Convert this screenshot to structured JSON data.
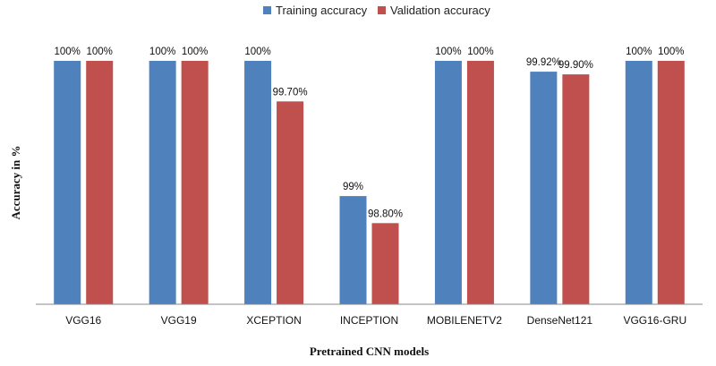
{
  "chart_data": {
    "type": "bar",
    "categories": [
      "VGG16",
      "VGG19",
      "XCEPTION",
      "INCEPTION",
      "MOBILENETV2",
      "DenseNet121",
      "VGG16-GRU"
    ],
    "series": [
      {
        "name": "Training accuracy",
        "values": [
          100,
          100,
          100,
          99,
          100,
          99.92,
          100
        ],
        "labels": [
          "100%",
          "100%",
          "100%",
          "99%",
          "100%",
          "99.92%",
          "100%"
        ],
        "color": "#4f81bd"
      },
      {
        "name": "Validation accuracy",
        "values": [
          100,
          100,
          99.7,
          98.8,
          100,
          99.9,
          100
        ],
        "labels": [
          "100%",
          "100%",
          "99.70%",
          "98.80%",
          "100%",
          "99.90%",
          "100%"
        ],
        "color": "#c0504d"
      }
    ],
    "xlabel": "Pretrained CNN models",
    "ylabel": "Accuracy in %",
    "ylim": [
      98.2,
      100
    ],
    "legend_position": "top-center",
    "grid": false
  }
}
